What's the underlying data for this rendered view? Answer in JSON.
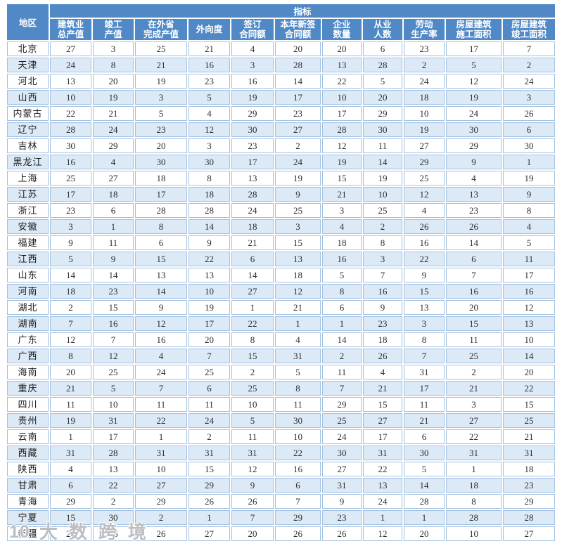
{
  "chart_data": {
    "type": "table",
    "region_header": "地区",
    "indicator_header": "指标",
    "columns": [
      "建筑业\n总产值",
      "竣工\n产值",
      "在外省\n完成产值",
      "外向度",
      "签订\n合同额",
      "本年新签\n合同额",
      "企业\n数量",
      "从业\n人数",
      "劳动\n生产率",
      "房屋建筑\n施工面积",
      "房屋建筑\n竣工面积"
    ],
    "rows": [
      {
        "region": "北京",
        "values": [
          27,
          3,
          25,
          21,
          4,
          20,
          20,
          6,
          23,
          17,
          7
        ]
      },
      {
        "region": "天津",
        "values": [
          24,
          8,
          21,
          16,
          3,
          28,
          13,
          28,
          2,
          5,
          2
        ]
      },
      {
        "region": "河北",
        "values": [
          13,
          20,
          19,
          23,
          16,
          14,
          22,
          5,
          24,
          12,
          24
        ]
      },
      {
        "region": "山西",
        "values": [
          10,
          19,
          3,
          5,
          19,
          17,
          10,
          20,
          18,
          19,
          3
        ]
      },
      {
        "region": "内蒙古",
        "values": [
          22,
          21,
          5,
          4,
          29,
          23,
          17,
          29,
          10,
          24,
          26
        ]
      },
      {
        "region": "辽宁",
        "values": [
          28,
          24,
          23,
          12,
          30,
          27,
          28,
          30,
          19,
          30,
          6
        ]
      },
      {
        "region": "吉林",
        "values": [
          30,
          29,
          20,
          3,
          23,
          2,
          12,
          11,
          27,
          29,
          30
        ]
      },
      {
        "region": "黑龙江",
        "values": [
          16,
          4,
          30,
          30,
          17,
          24,
          19,
          14,
          29,
          9,
          1
        ]
      },
      {
        "region": "上海",
        "values": [
          25,
          27,
          18,
          8,
          13,
          19,
          15,
          19,
          25,
          4,
          19
        ]
      },
      {
        "region": "江苏",
        "values": [
          17,
          18,
          17,
          18,
          28,
          9,
          21,
          10,
          12,
          13,
          9
        ]
      },
      {
        "region": "浙江",
        "values": [
          23,
          6,
          28,
          28,
          24,
          25,
          3,
          25,
          4,
          23,
          8
        ]
      },
      {
        "region": "安徽",
        "values": [
          3,
          1,
          8,
          14,
          18,
          3,
          4,
          2,
          26,
          26,
          4
        ]
      },
      {
        "region": "福建",
        "values": [
          9,
          11,
          6,
          9,
          21,
          15,
          18,
          8,
          16,
          14,
          5
        ]
      },
      {
        "region": "江西",
        "values": [
          5,
          9,
          15,
          22,
          6,
          13,
          16,
          3,
          22,
          6,
          11
        ]
      },
      {
        "region": "山东",
        "values": [
          14,
          14,
          13,
          13,
          14,
          18,
          5,
          7,
          9,
          7,
          17
        ]
      },
      {
        "region": "河南",
        "values": [
          18,
          23,
          14,
          10,
          27,
          12,
          8,
          16,
          15,
          16,
          16
        ]
      },
      {
        "region": "湖北",
        "values": [
          2,
          15,
          9,
          19,
          1,
          21,
          6,
          9,
          13,
          20,
          12
        ]
      },
      {
        "region": "湖南",
        "values": [
          7,
          16,
          12,
          17,
          22,
          1,
          1,
          23,
          3,
          15,
          13
        ]
      },
      {
        "region": "广东",
        "values": [
          12,
          7,
          16,
          20,
          8,
          4,
          14,
          18,
          8,
          11,
          10
        ]
      },
      {
        "region": "广西",
        "values": [
          8,
          12,
          4,
          7,
          15,
          31,
          2,
          26,
          7,
          25,
          14
        ]
      },
      {
        "region": "海南",
        "values": [
          20,
          25,
          24,
          25,
          2,
          5,
          11,
          4,
          31,
          2,
          20
        ]
      },
      {
        "region": "重庆",
        "values": [
          21,
          5,
          7,
          6,
          25,
          8,
          7,
          21,
          17,
          21,
          22
        ]
      },
      {
        "region": "四川",
        "values": [
          11,
          10,
          11,
          11,
          10,
          11,
          29,
          15,
          11,
          3,
          15
        ]
      },
      {
        "region": "贵州",
        "values": [
          19,
          31,
          22,
          24,
          5,
          30,
          25,
          27,
          21,
          27,
          25
        ]
      },
      {
        "region": "云南",
        "values": [
          1,
          17,
          1,
          2,
          11,
          10,
          24,
          17,
          6,
          22,
          21
        ]
      },
      {
        "region": "西藏",
        "values": [
          31,
          28,
          31,
          31,
          31,
          22,
          30,
          31,
          30,
          31,
          31
        ]
      },
      {
        "region": "陕西",
        "values": [
          4,
          13,
          10,
          15,
          12,
          16,
          27,
          22,
          5,
          1,
          18
        ]
      },
      {
        "region": "甘肃",
        "values": [
          6,
          22,
          27,
          29,
          9,
          6,
          31,
          13,
          14,
          18,
          23
        ]
      },
      {
        "region": "青海",
        "values": [
          29,
          2,
          29,
          26,
          26,
          7,
          9,
          24,
          28,
          8,
          29
        ]
      },
      {
        "region": "宁夏",
        "values": [
          15,
          30,
          2,
          1,
          7,
          29,
          23,
          1,
          1,
          28,
          28
        ]
      },
      {
        "region": "新疆",
        "values": [
          26,
          26,
          26,
          27,
          20,
          26,
          26,
          12,
          20,
          10,
          27
        ]
      }
    ]
  },
  "watermark": {
    "logo": "10",
    "text": "大数跨境"
  },
  "colors": {
    "header_bg": "#5189c6",
    "row_alt_bg": "#dce9f6",
    "cell_border": "#a3c1e0",
    "value_text": "#2f2f2f",
    "watermark_gray": "#94969b"
  }
}
